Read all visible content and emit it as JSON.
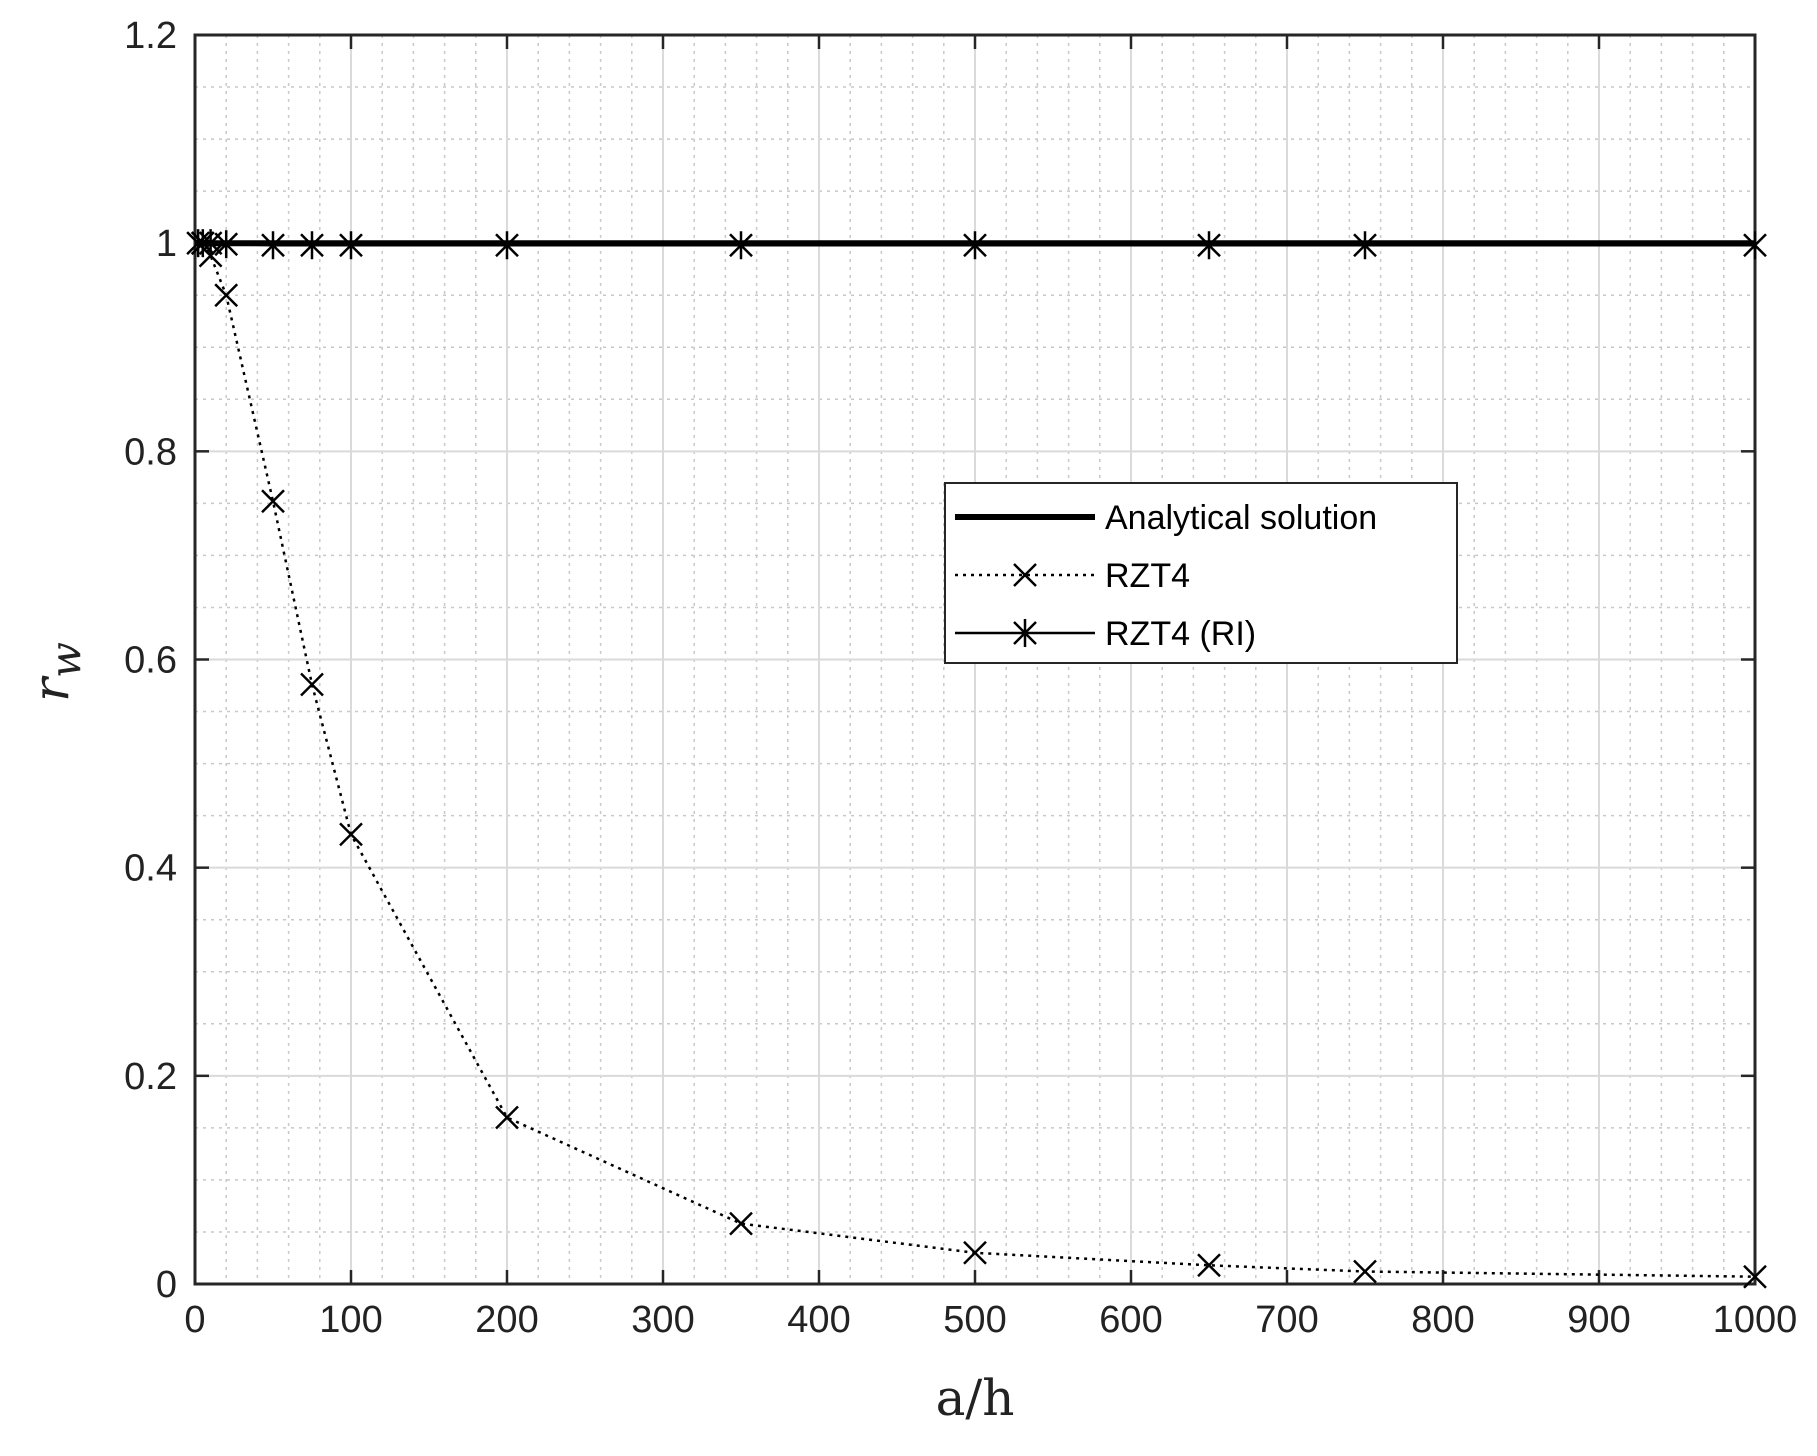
{
  "chart_data": {
    "type": "line",
    "xlabel": "a/h",
    "ylabel": "r",
    "ylabel_subscript": "w",
    "xlim": [
      0,
      1000
    ],
    "ylim": [
      0,
      1.2
    ],
    "x_ticks": [
      0,
      100,
      200,
      300,
      400,
      500,
      600,
      700,
      800,
      900,
      1000
    ],
    "x_tick_labels": [
      "0",
      "100",
      "200",
      "300",
      "400",
      "500",
      "600",
      "700",
      "800",
      "900",
      "1000"
    ],
    "y_ticks": [
      0,
      0.2,
      0.4,
      0.6,
      0.8,
      1,
      1.2
    ],
    "y_tick_labels": [
      "0",
      "0.2",
      "0.4",
      "0.6",
      "0.8",
      "1",
      "1.2"
    ],
    "grid": true,
    "minor_grid": true,
    "legend_position": "right-middle",
    "series": [
      {
        "name": "Analytical solution",
        "style": "solid-thick",
        "marker": "none",
        "color": "#000000",
        "x": [
          0,
          1000
        ],
        "y": [
          1,
          1
        ]
      },
      {
        "name": "RZT4",
        "style": "dotted",
        "marker": "x",
        "color": "#000000",
        "x": [
          5,
          10,
          20,
          50,
          75,
          100,
          200,
          350,
          500,
          650,
          750,
          1000
        ],
        "y": [
          1.0,
          0.988,
          0.95,
          0.752,
          0.576,
          0.432,
          0.16,
          0.058,
          0.03,
          0.018,
          0.012,
          0.007
        ]
      },
      {
        "name": "RZT4 (RI)",
        "style": "solid-thin",
        "marker": "asterisk",
        "color": "#000000",
        "x": [
          2,
          5,
          10,
          20,
          50,
          75,
          100,
          200,
          350,
          500,
          650,
          750,
          1000
        ],
        "y": [
          1.0,
          1.0,
          1.0,
          0.999,
          0.998,
          0.998,
          0.998,
          0.998,
          0.998,
          0.998,
          0.998,
          0.998,
          0.998
        ]
      }
    ]
  }
}
